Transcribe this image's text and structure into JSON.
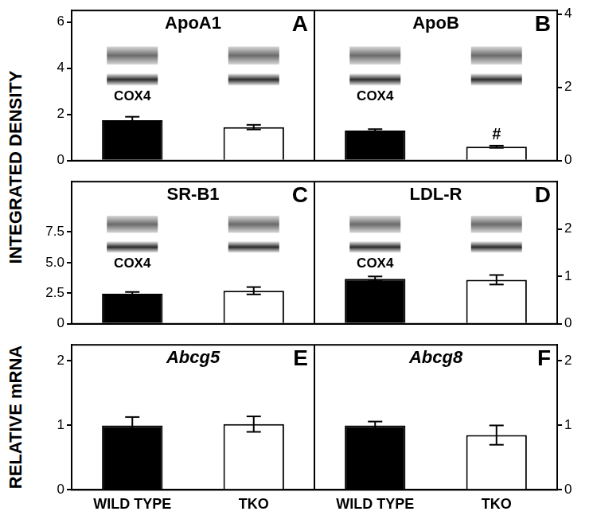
{
  "chart_data": [
    {
      "type": "bar",
      "panel": "A",
      "title": "ApoA1",
      "ylabel": "INTEGRATED DENSITY",
      "categories": [
        "WILD TYPE",
        "TKO"
      ],
      "values": [
        1.75,
        1.45
      ],
      "errors": [
        0.15,
        0.1
      ],
      "colors": [
        "#000000",
        "#ffffff"
      ],
      "ylim": [
        0,
        6.5
      ],
      "yticks": [
        0,
        2,
        4,
        6
      ],
      "grid": false,
      "tick_labels": "y",
      "annotations": [
        {
          "text": "COX4",
          "category": "WILD TYPE"
        }
      ]
    },
    {
      "type": "bar",
      "panel": "B",
      "title": "ApoB",
      "categories": [
        "WILD TYPE",
        "TKO"
      ],
      "values": [
        0.82,
        0.38
      ],
      "errors": [
        0.04,
        0.03
      ],
      "colors": [
        "#000000",
        "#ffffff"
      ],
      "ylim": [
        0,
        4.1
      ],
      "yticks": [
        0,
        2,
        4
      ],
      "grid": false,
      "tick_labels": "y",
      "annotations": [
        {
          "text": "COX4",
          "category": "WILD TYPE"
        },
        {
          "text": "#",
          "category": "TKO"
        }
      ]
    },
    {
      "type": "bar",
      "panel": "C",
      "title": "SR-B1",
      "categories": [
        "WILD TYPE",
        "TKO"
      ],
      "values": [
        2.45,
        2.7
      ],
      "errors": [
        0.15,
        0.3
      ],
      "colors": [
        "#000000",
        "#ffffff"
      ],
      "ylim": [
        0,
        11.6
      ],
      "yticks": [
        0,
        2.5,
        {
          "value": 5,
          "label": "5.0"
        },
        7.5
      ],
      "grid": false,
      "tick_labels": "y",
      "annotations": [
        {
          "text": "COX4",
          "category": "WILD TYPE"
        }
      ]
    },
    {
      "type": "bar",
      "panel": "D",
      "title": "LDL-R",
      "categories": [
        "WILD TYPE",
        "TKO"
      ],
      "values": [
        0.95,
        0.93
      ],
      "errors": [
        0.05,
        0.1
      ],
      "colors": [
        "#000000",
        "#ffffff"
      ],
      "ylim": [
        0,
        3
      ],
      "yticks": [
        0,
        1,
        2
      ],
      "grid": false,
      "tick_labels": "y",
      "annotations": [
        {
          "text": "COX4",
          "category": "WILD TYPE"
        }
      ]
    },
    {
      "type": "bar",
      "panel": "E",
      "title": "Abcg5",
      "ylabel": "RELATIVE mRNA",
      "categories": [
        "WILD TYPE",
        "TKO"
      ],
      "values": [
        1.0,
        1.02
      ],
      "errors": [
        0.13,
        0.12
      ],
      "colors": [
        "#000000",
        "#ffffff"
      ],
      "ylim": [
        0,
        2.25
      ],
      "yticks": [
        0,
        1,
        2
      ],
      "grid": false
    },
    {
      "type": "bar",
      "panel": "F",
      "title": "Abcg8",
      "categories": [
        "WILD TYPE",
        "TKO"
      ],
      "values": [
        1.0,
        0.85
      ],
      "errors": [
        0.06,
        0.15
      ],
      "colors": [
        "#000000",
        "#ffffff"
      ],
      "ylim": [
        0,
        2.25
      ],
      "yticks": [
        0,
        1,
        2
      ],
      "grid": false
    }
  ]
}
